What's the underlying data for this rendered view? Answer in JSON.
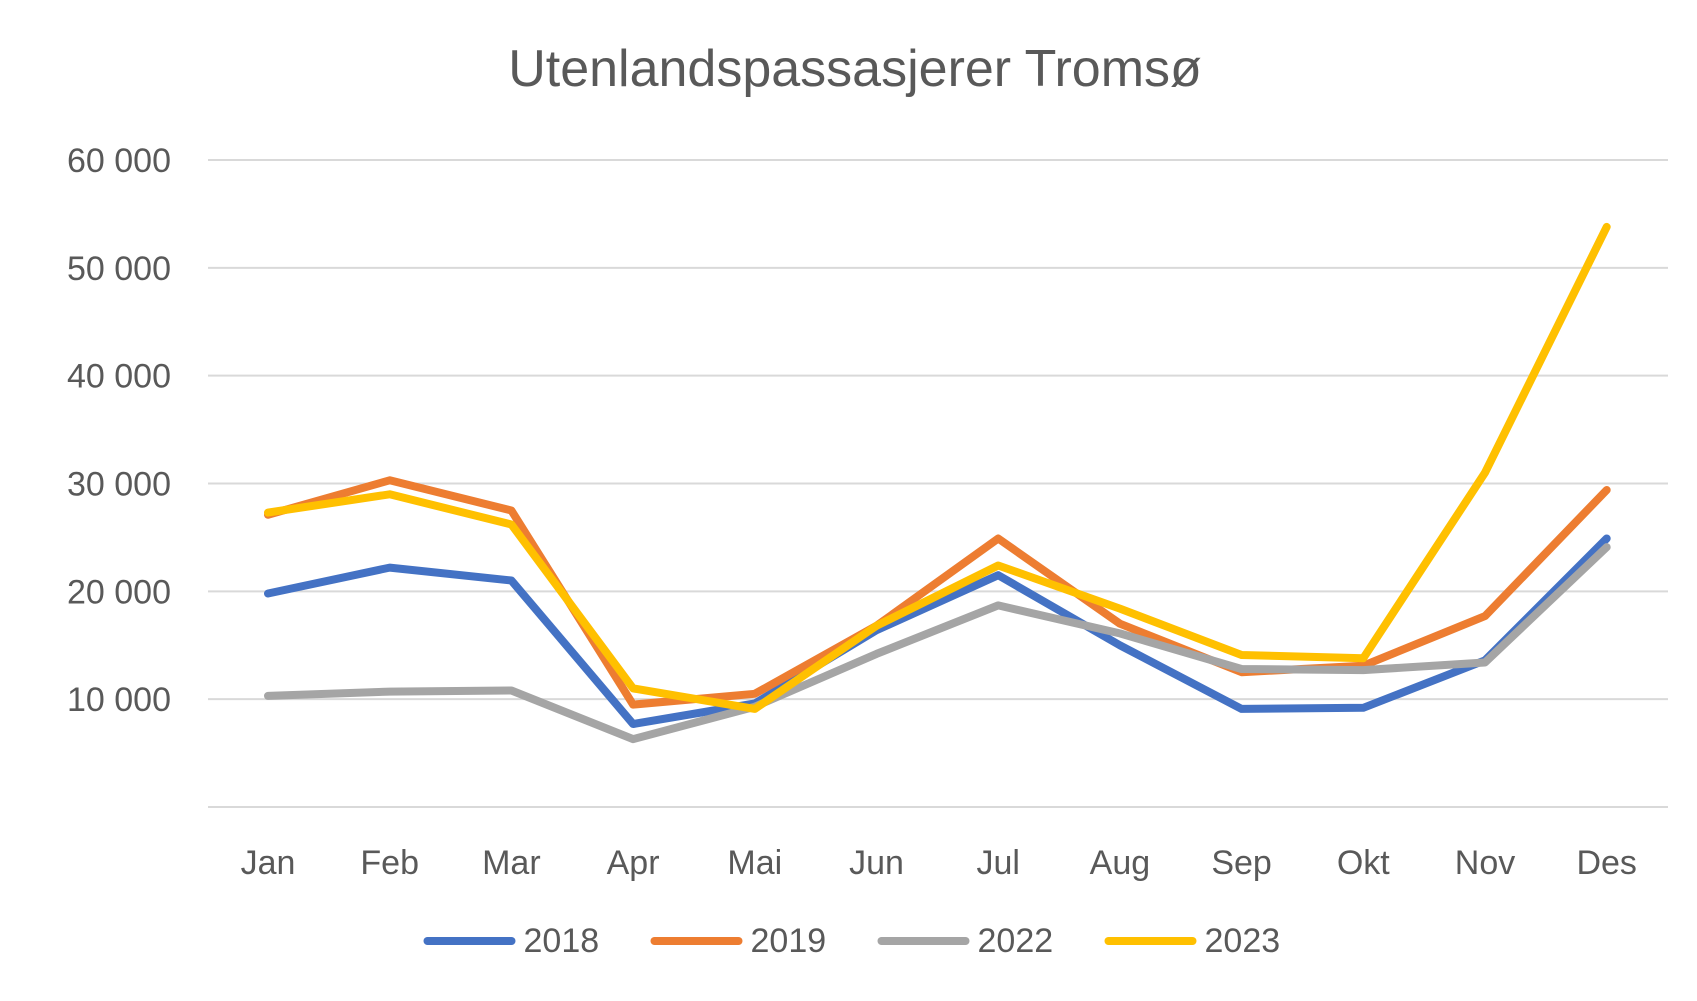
{
  "chart_data": {
    "type": "line",
    "title": "Utenlandspassasjerer Tromsø",
    "xlabel": "",
    "ylabel": "",
    "categories": [
      "Jan",
      "Feb",
      "Mar",
      "Apr",
      "Mai",
      "Jun",
      "Jul",
      "Aug",
      "Sep",
      "Okt",
      "Nov",
      "Des"
    ],
    "ylim": [
      0,
      60000
    ],
    "yticks": [
      10000,
      20000,
      30000,
      40000,
      50000,
      60000
    ],
    "ytick_labels": [
      "10 000",
      "20 000",
      "30 000",
      "40 000",
      "50 000",
      "60 000"
    ],
    "grid": true,
    "legend_position": "bottom",
    "series": [
      {
        "name": "2018",
        "color": "#4472C4",
        "values": [
          19800,
          22200,
          21000,
          7700,
          9600,
          16400,
          21500,
          15000,
          9100,
          9200,
          13600,
          24900
        ]
      },
      {
        "name": "2019",
        "color": "#ED7D31",
        "values": [
          27100,
          30300,
          27500,
          9500,
          10500,
          16800,
          24900,
          17000,
          12500,
          13100,
          17700,
          29400
        ]
      },
      {
        "name": "2022",
        "color": "#A5A5A5",
        "values": [
          10300,
          10700,
          10800,
          6300,
          9300,
          14200,
          18700,
          16100,
          12800,
          12700,
          13400,
          24100
        ]
      },
      {
        "name": "2023",
        "color": "#FFC000",
        "values": [
          27300,
          29000,
          26200,
          11000,
          9100,
          16800,
          22400,
          18400,
          14100,
          13800,
          31000,
          53800
        ]
      }
    ]
  }
}
